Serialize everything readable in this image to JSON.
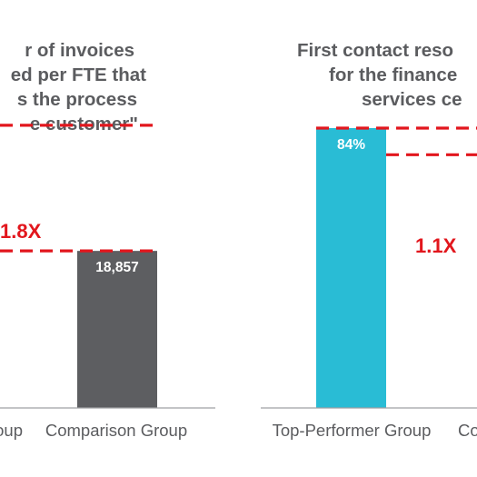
{
  "chart_data": [
    {
      "type": "bar",
      "title_lines": [
        "r of invoices",
        "ed per FTE that",
        "s the process",
        "e customer\""
      ],
      "categories": [
        "oup",
        "Comparison Group"
      ],
      "values": [
        33943,
        18857
      ],
      "value_labels": [
        "",
        "18,857"
      ],
      "multiplier_label": "1.8X",
      "colors": [
        "#5d5e61",
        "#5d5e61"
      ],
      "ylim": [
        0,
        36000
      ]
    },
    {
      "type": "bar",
      "title_lines": [
        "First contact reso",
        "for the finance",
        "services ce"
      ],
      "categories": [
        "Top-Performer Group",
        "Co"
      ],
      "values": [
        84,
        76
      ],
      "value_labels": [
        "84%",
        ""
      ],
      "multiplier_label": "1.1X",
      "colors": [
        "#29bcd5",
        "#5d5e61"
      ],
      "ylim": [
        0,
        90
      ]
    }
  ],
  "colors": {
    "accent_red": "#e2161d",
    "text_gray": "#5b5c5f"
  }
}
